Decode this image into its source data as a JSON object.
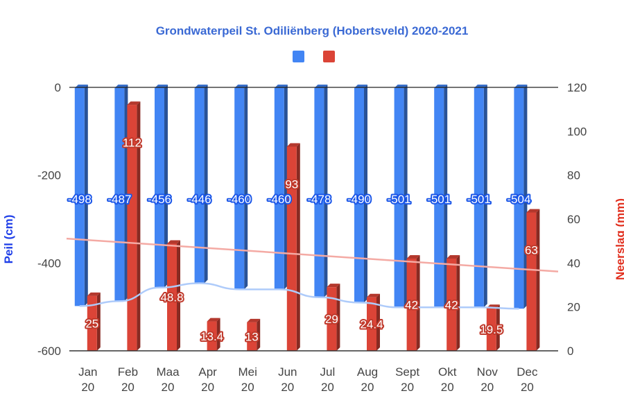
{
  "chart_data": {
    "type": "bar",
    "title": "Grondwaterpeil St. Odiliënberg (Hobertsveld) 2020-2021",
    "categories": [
      [
        "Jan",
        "20"
      ],
      [
        "Feb",
        "20"
      ],
      [
        "Maa",
        "20"
      ],
      [
        "Apr",
        "20"
      ],
      [
        "Mei",
        "20"
      ],
      [
        "Jun",
        "20"
      ],
      [
        "Jul",
        "20"
      ],
      [
        "Aug",
        "20"
      ],
      [
        "Sept",
        "20"
      ],
      [
        "Okt",
        "20"
      ],
      [
        "Nov",
        "20"
      ],
      [
        "Dec",
        "20"
      ]
    ],
    "series": [
      {
        "axis": "left",
        "color": "#4285f4",
        "label_color": "#1a56e8",
        "values": [
          -498,
          -487,
          -456,
          -446,
          -460,
          -460,
          -478,
          -490,
          -501,
          -501,
          -501,
          -504
        ],
        "labels": [
          "-498",
          "-487",
          "-456",
          "-446",
          "-460",
          "-460",
          "-478",
          "-490",
          "-501",
          "-501",
          "-501",
          "-504"
        ]
      },
      {
        "axis": "right",
        "color": "#db4437",
        "label_color": "#c0392b",
        "values": [
          25,
          112,
          48.8,
          13.4,
          13,
          93,
          29,
          24.4,
          42,
          42,
          19.5,
          63
        ],
        "labels": [
          "25",
          "112",
          "48.8",
          "13.4",
          "13",
          "93",
          "29",
          "24.4",
          "42",
          "42",
          "19.5",
          "63"
        ]
      }
    ],
    "trendlines": [
      {
        "axis": "left",
        "color": "#aecbfa",
        "type": "curve"
      },
      {
        "axis": "right",
        "color": "#f4aaa4",
        "type": "linear"
      }
    ],
    "y_left": {
      "label": "Peil (cm)",
      "ylim": [
        -600,
        0
      ],
      "ticks": [
        0,
        -200,
        -400,
        -600
      ]
    },
    "y_right": {
      "label": "Neerslag (mm)",
      "ylim": [
        0,
        120
      ],
      "ticks": [
        120,
        100,
        80,
        60,
        40,
        20,
        0
      ]
    },
    "legend": {
      "position": "top",
      "entries": [
        {
          "name": "",
          "color": "#4285f4"
        },
        {
          "name": "",
          "color": "#db4437"
        }
      ]
    },
    "grid": false
  }
}
